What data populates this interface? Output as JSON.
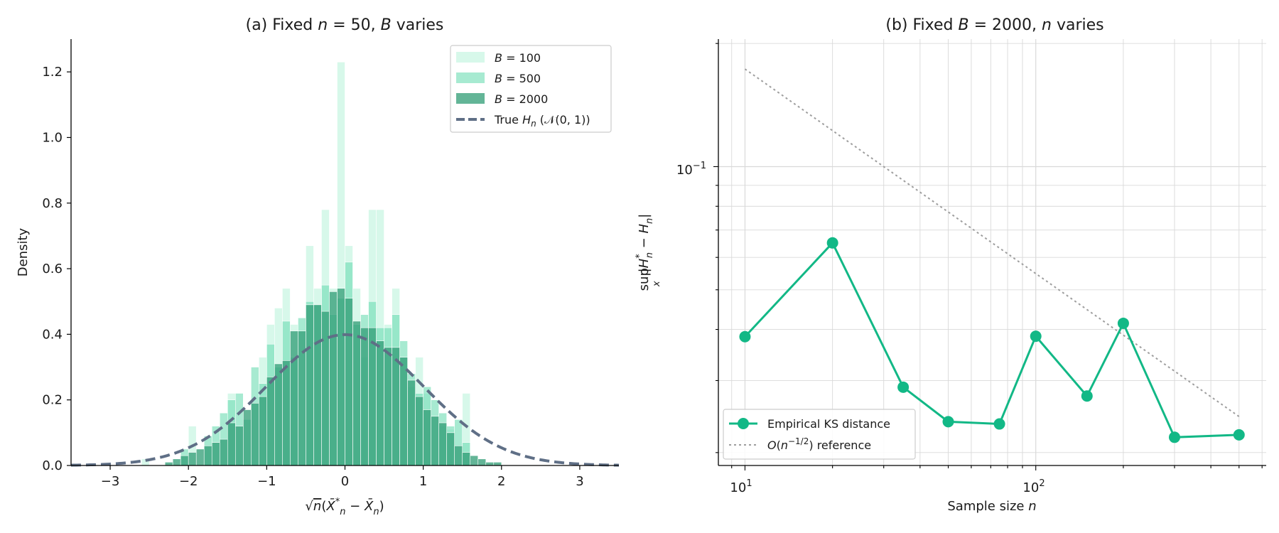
{
  "chart_data": [
    {
      "type": "bar",
      "title": "(a) Fixed n = 50, B varies",
      "xlabel": "√n (X̄*ₙ − X̄ₙ)",
      "ylabel": "Density",
      "xlim": [
        -3.5,
        3.5
      ],
      "ylim": [
        0,
        1.3
      ],
      "xticks": [
        -3,
        -2,
        -1,
        0,
        1,
        2,
        3
      ],
      "xtick_labels": [
        "−3",
        "−2",
        "−1",
        "0",
        "1",
        "2",
        "3"
      ],
      "yticks": [
        0.0,
        0.2,
        0.4,
        0.6,
        0.8,
        1.0,
        1.2
      ],
      "ytick_labels": [
        "0.0",
        "0.2",
        "0.4",
        "0.6",
        "0.8",
        "1.0",
        "1.2"
      ],
      "grid": false,
      "legend_position": "top-right",
      "bin_width": 0.1,
      "series": [
        {
          "name": "B = 100",
          "color": "#b6f2d8",
          "alpha": 0.55,
          "bin_centers": [
            -2.55,
            -1.95,
            -1.45,
            -1.05,
            -0.95,
            -0.85,
            -0.75,
            -0.65,
            -0.45,
            -0.35,
            -0.25,
            -0.15,
            -0.05,
            0.05,
            0.15,
            0.25,
            0.35,
            0.45,
            0.55,
            0.65,
            0.75,
            0.85,
            0.95,
            1.05,
            1.25,
            1.35,
            1.55
          ],
          "values": [
            0.02,
            0.12,
            0.22,
            0.33,
            0.43,
            0.48,
            0.54,
            0.43,
            0.67,
            0.54,
            0.78,
            0.54,
            1.23,
            0.67,
            0.54,
            0.33,
            0.78,
            0.78,
            0.43,
            0.54,
            0.33,
            0.24,
            0.33,
            0.22,
            0.12,
            0.11,
            0.22
          ]
        },
        {
          "name": "B = 500",
          "color": "#6ddcb2",
          "alpha": 0.6,
          "bin_centers": [
            -2.05,
            -1.75,
            -1.65,
            -1.55,
            -1.45,
            -1.35,
            -1.25,
            -1.15,
            -1.05,
            -0.95,
            -0.85,
            -0.75,
            -0.65,
            -0.55,
            -0.45,
            -0.35,
            -0.25,
            -0.15,
            -0.05,
            0.05,
            0.15,
            0.25,
            0.35,
            0.45,
            0.55,
            0.65,
            0.75,
            0.85,
            0.95,
            1.05,
            1.15,
            1.25,
            1.35,
            1.45,
            1.55
          ],
          "values": [
            0.05,
            0.09,
            0.12,
            0.16,
            0.2,
            0.22,
            0.14,
            0.3,
            0.25,
            0.37,
            0.3,
            0.44,
            0.33,
            0.45,
            0.5,
            0.49,
            0.55,
            0.46,
            0.51,
            0.62,
            0.43,
            0.46,
            0.5,
            0.42,
            0.42,
            0.46,
            0.38,
            0.28,
            0.22,
            0.24,
            0.2,
            0.16,
            0.12,
            0.14,
            0.07
          ]
        },
        {
          "name": "B = 2000",
          "color": "#2f9c74",
          "alpha": 0.75,
          "bin_centers": [
            -2.25,
            -2.15,
            -2.05,
            -1.95,
            -1.85,
            -1.75,
            -1.65,
            -1.55,
            -1.45,
            -1.35,
            -1.25,
            -1.15,
            -1.05,
            -0.95,
            -0.85,
            -0.75,
            -0.65,
            -0.55,
            -0.45,
            -0.35,
            -0.25,
            -0.15,
            -0.05,
            0.05,
            0.15,
            0.25,
            0.35,
            0.45,
            0.55,
            0.65,
            0.75,
            0.85,
            0.95,
            1.05,
            1.15,
            1.25,
            1.35,
            1.45,
            1.55,
            1.65,
            1.75,
            1.85,
            1.95
          ],
          "values": [
            0.01,
            0.02,
            0.03,
            0.04,
            0.05,
            0.06,
            0.07,
            0.08,
            0.13,
            0.12,
            0.17,
            0.19,
            0.21,
            0.27,
            0.31,
            0.32,
            0.41,
            0.41,
            0.49,
            0.49,
            0.47,
            0.53,
            0.54,
            0.51,
            0.44,
            0.42,
            0.42,
            0.38,
            0.36,
            0.36,
            0.33,
            0.26,
            0.21,
            0.17,
            0.15,
            0.13,
            0.1,
            0.06,
            0.04,
            0.03,
            0.02,
            0.01,
            0.01
          ]
        }
      ],
      "reference": {
        "name": "True Hₙ (𝒩(0, 1))",
        "color": "#5f6f86",
        "style": "dashed",
        "mean": 0,
        "sd": 1
      },
      "legend": [
        {
          "prefix": "B",
          "rest": " = 100"
        },
        {
          "prefix": "B",
          "rest": " = 500"
        },
        {
          "prefix": "B",
          "rest": " = 2000"
        },
        {
          "prefix": "True ",
          "it": "H",
          "sub": "n",
          "rest": " (𝒩(0, 1))"
        }
      ]
    },
    {
      "type": "line",
      "title": "(b) Fixed B = 2000, n varies",
      "xlabel": "Sample size n",
      "ylabel": "sup |H*ₙ − Hₙ|",
      "xscale": "log",
      "yscale": "log",
      "xlim": [
        8.1,
        620
      ],
      "ylim": [
        0.0186,
        0.205
      ],
      "xtick_labels": [
        "10¹",
        "10²"
      ],
      "ytick_labels": [
        "10⁻¹"
      ],
      "grid": true,
      "legend_position": "bottom-left",
      "series": [
        {
          "name": "Empirical KS distance",
          "color": "#12b886",
          "x": [
            10,
            20,
            35,
            50,
            75,
            100,
            150,
            200,
            300,
            500
          ],
          "y": [
            0.0384,
            0.0651,
            0.0289,
            0.0238,
            0.0235,
            0.0385,
            0.0275,
            0.0414,
            0.0218,
            0.0221
          ]
        },
        {
          "name": "O(n^-1/2) reference",
          "color": "#9e9e9e",
          "style": "dotted",
          "x": [
            10,
            500
          ],
          "y": [
            0.1732,
            0.0245
          ]
        }
      ]
    }
  ]
}
